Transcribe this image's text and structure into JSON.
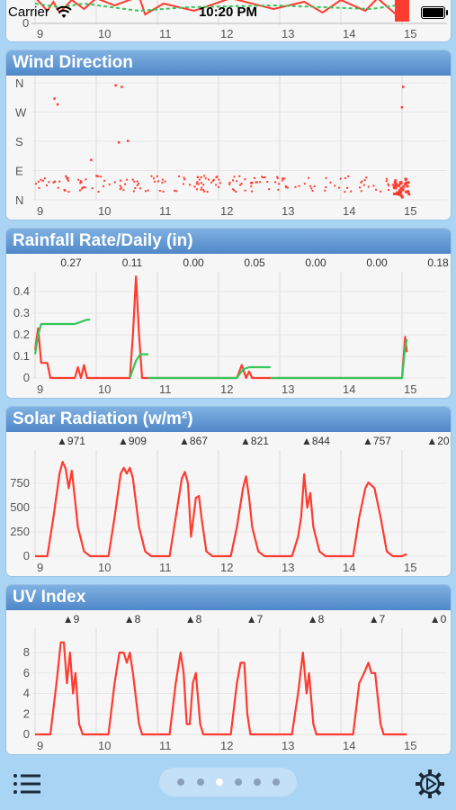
{
  "status_bar": {
    "carrier": "Carrier",
    "time": "10:20 PM"
  },
  "top_chart": {
    "x_ticks": [
      "9",
      "10",
      "11",
      "12",
      "13",
      "14",
      "15"
    ],
    "y_tick": "0"
  },
  "panels": [
    {
      "title": "Wind Direction",
      "chart_data": {
        "type": "scatter",
        "y_categories": [
          "N",
          "W",
          "S",
          "E",
          "N"
        ],
        "x_ticks": [
          "9",
          "10",
          "11",
          "12",
          "13",
          "14",
          "15"
        ],
        "series_color": "#ff3b30"
      }
    },
    {
      "title": "Rainfall Rate/Daily (in)",
      "chart_data": {
        "type": "line",
        "daily_totals": [
          "0.27",
          "0.11",
          "0.00",
          "0.05",
          "0.00",
          "0.00",
          "0.18"
        ],
        "y_ticks": [
          "0",
          "0.1",
          "0.2",
          "0.3",
          "0.4"
        ],
        "x_ticks": [
          "9",
          "10",
          "11",
          "12",
          "13",
          "14",
          "15"
        ],
        "ylim": [
          0,
          0.45
        ],
        "series": [
          {
            "color": "#ff3b30",
            "points": [
              [
                9.0,
                0.13
              ],
              [
                9.05,
                0.23
              ],
              [
                9.1,
                0.07
              ],
              [
                9.2,
                0.07
              ],
              [
                9.25,
                0
              ],
              [
                9.65,
                0
              ],
              [
                9.7,
                0.05
              ],
              [
                9.75,
                0
              ],
              [
                9.8,
                0.06
              ],
              [
                9.85,
                0
              ],
              [
                10.55,
                0
              ],
              [
                10.6,
                0.2
              ],
              [
                10.65,
                0.47
              ],
              [
                10.7,
                0.2
              ],
              [
                10.75,
                0
              ],
              [
                12.3,
                0
              ],
              [
                12.38,
                0.06
              ],
              [
                12.45,
                0
              ],
              [
                12.5,
                0.03
              ],
              [
                12.55,
                0
              ],
              [
                15.0,
                0
              ],
              [
                15.05,
                0.19
              ],
              [
                15.08,
                0.12
              ]
            ]
          },
          {
            "color": "#34c759",
            "points": [
              [
                9.0,
                0.11
              ],
              [
                9.05,
                0.2
              ],
              [
                9.1,
                0.25
              ],
              [
                9.65,
                0.25
              ],
              [
                9.75,
                0.26
              ],
              [
                9.85,
                0.27
              ],
              [
                9.9,
                0.27
              ]
            ]
          },
          {
            "color": "#34c759",
            "points": [
              [
                10.55,
                0
              ],
              [
                10.65,
                0.08
              ],
              [
                10.72,
                0.11
              ],
              [
                10.85,
                0.11
              ]
            ]
          },
          {
            "color": "#34c759",
            "points": [
              [
                10.85,
                0
              ],
              [
                12.3,
                0
              ],
              [
                12.4,
                0.04
              ],
              [
                12.5,
                0.05
              ],
              [
                12.85,
                0.05
              ]
            ]
          },
          {
            "color": "#34c759",
            "points": [
              [
                12.85,
                0
              ],
              [
                15.0,
                0
              ],
              [
                15.05,
                0.14
              ],
              [
                15.08,
                0.18
              ]
            ]
          }
        ]
      }
    },
    {
      "title": "Solar Radiation (w/m²)",
      "chart_data": {
        "type": "line",
        "daily_max": [
          "▲971",
          "▲909",
          "▲867",
          "▲821",
          "▲844",
          "▲757",
          "▲20"
        ],
        "y_ticks": [
          "0",
          "250",
          "500",
          "750"
        ],
        "x_ticks": [
          "9",
          "10",
          "11",
          "12",
          "13",
          "14",
          "15"
        ],
        "ylim": [
          0,
          1000
        ],
        "series": [
          {
            "color": "#ff3b30",
            "points": [
              [
                9.0,
                0
              ],
              [
                9.2,
                0
              ],
              [
                9.3,
                400
              ],
              [
                9.4,
                850
              ],
              [
                9.45,
                971
              ],
              [
                9.5,
                900
              ],
              [
                9.55,
                700
              ],
              [
                9.6,
                880
              ],
              [
                9.65,
                600
              ],
              [
                9.7,
                300
              ],
              [
                9.8,
                50
              ],
              [
                9.9,
                0
              ],
              [
                10.2,
                0
              ],
              [
                10.3,
                400
              ],
              [
                10.4,
                850
              ],
              [
                10.45,
                909
              ],
              [
                10.5,
                850
              ],
              [
                10.55,
                909
              ],
              [
                10.6,
                800
              ],
              [
                10.7,
                300
              ],
              [
                10.8,
                50
              ],
              [
                10.9,
                0
              ],
              [
                11.2,
                0
              ],
              [
                11.3,
                400
              ],
              [
                11.4,
                800
              ],
              [
                11.45,
                867
              ],
              [
                11.5,
                750
              ],
              [
                11.55,
                200
              ],
              [
                11.6,
                450
              ],
              [
                11.63,
                600
              ],
              [
                11.68,
                620
              ],
              [
                11.72,
                400
              ],
              [
                11.8,
                50
              ],
              [
                11.9,
                0
              ],
              [
                12.2,
                0
              ],
              [
                12.3,
                300
              ],
              [
                12.4,
                700
              ],
              [
                12.45,
                821
              ],
              [
                12.5,
                600
              ],
              [
                12.55,
                300
              ],
              [
                12.65,
                50
              ],
              [
                12.75,
                0
              ],
              [
                13.2,
                0
              ],
              [
                13.3,
                200
              ],
              [
                13.35,
                400
              ],
              [
                13.4,
                844
              ],
              [
                13.45,
                500
              ],
              [
                13.5,
                650
              ],
              [
                13.55,
                300
              ],
              [
                13.65,
                50
              ],
              [
                13.75,
                0
              ],
              [
                14.2,
                0
              ],
              [
                14.3,
                400
              ],
              [
                14.4,
                700
              ],
              [
                14.45,
                757
              ],
              [
                14.55,
                700
              ],
              [
                14.65,
                400
              ],
              [
                14.75,
                50
              ],
              [
                14.85,
                0
              ],
              [
                15.0,
                0
              ],
              [
                15.05,
                15
              ],
              [
                15.08,
                20
              ]
            ]
          }
        ]
      }
    },
    {
      "title": "UV Index",
      "chart_data": {
        "type": "line",
        "daily_max": [
          "▲9",
          "▲8",
          "▲8",
          "▲7",
          "▲8",
          "▲7",
          "▲0"
        ],
        "y_ticks": [
          "0",
          "2",
          "4",
          "6",
          "8"
        ],
        "x_ticks": [
          "9",
          "10",
          "11",
          "12",
          "13",
          "14",
          "15"
        ],
        "ylim": [
          0,
          9.5
        ],
        "series": [
          {
            "color": "#ff3b30",
            "points": [
              [
                9.0,
                0
              ],
              [
                9.25,
                0
              ],
              [
                9.35,
                5
              ],
              [
                9.42,
                9
              ],
              [
                9.47,
                9
              ],
              [
                9.52,
                5
              ],
              [
                9.57,
                8
              ],
              [
                9.62,
                4
              ],
              [
                9.66,
                6
              ],
              [
                9.72,
                1
              ],
              [
                9.78,
                0
              ],
              [
                10.2,
                0
              ],
              [
                10.3,
                5
              ],
              [
                10.38,
                8
              ],
              [
                10.45,
                8
              ],
              [
                10.5,
                7
              ],
              [
                10.55,
                8
              ],
              [
                10.6,
                6
              ],
              [
                10.7,
                1
              ],
              [
                10.75,
                0
              ],
              [
                11.2,
                0
              ],
              [
                11.3,
                5
              ],
              [
                11.38,
                8
              ],
              [
                11.43,
                6
              ],
              [
                11.48,
                1
              ],
              [
                11.53,
                1
              ],
              [
                11.58,
                5
              ],
              [
                11.63,
                6
              ],
              [
                11.7,
                1
              ],
              [
                11.75,
                0
              ],
              [
                12.2,
                0
              ],
              [
                12.3,
                5
              ],
              [
                12.36,
                7
              ],
              [
                12.42,
                7
              ],
              [
                12.47,
                2
              ],
              [
                12.52,
                0
              ],
              [
                13.2,
                0
              ],
              [
                13.3,
                4
              ],
              [
                13.38,
                8
              ],
              [
                13.44,
                4
              ],
              [
                13.48,
                6
              ],
              [
                13.55,
                1
              ],
              [
                13.6,
                0
              ],
              [
                14.2,
                0
              ],
              [
                14.3,
                5
              ],
              [
                14.38,
                6
              ],
              [
                14.45,
                7
              ],
              [
                14.5,
                6
              ],
              [
                14.56,
                6
              ],
              [
                14.65,
                1
              ],
              [
                14.7,
                0
              ],
              [
                15.08,
                0
              ]
            ]
          }
        ]
      }
    }
  ]
}
